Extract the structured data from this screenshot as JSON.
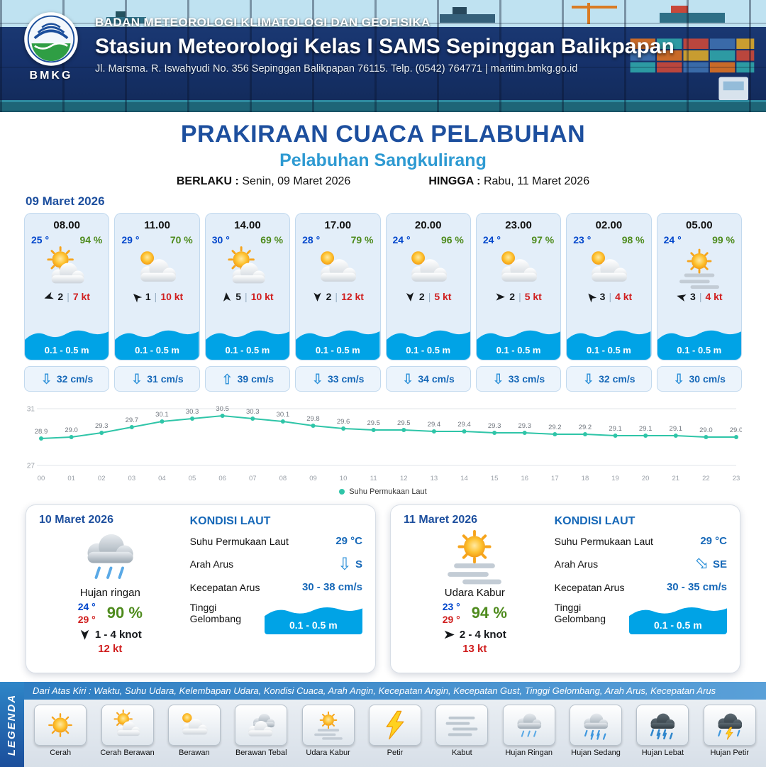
{
  "colors": {
    "header_navy": "#16316a",
    "title_blue": "#1d4f9e",
    "port_blue": "#2e9ad2",
    "temp_blue": "#0046cc",
    "humidity_green": "#4e8b1d",
    "gust_red": "#d01f1f",
    "wave_blue": "#00a3e6",
    "current_blue": "#1668b8",
    "chart_line_teal": "#2fc5a8"
  },
  "misc": {
    "separator": "|"
  },
  "header": {
    "logo_text": "BMKG",
    "org": "BADAN METEOROLOGI KLIMATOLOGI DAN GEOFISIKA",
    "station": "Stasiun Meteorologi Kelas I SAMS Sepinggan Balikpapan",
    "address": "Jl. Marsma. R. Iswahyudi No. 356 Sepinggan Balikpapan 76115. Telp. (0542) 764771 | maritim.bmkg.go.id"
  },
  "title": {
    "main": "PRAKIRAAN CUACA PELABUHAN",
    "port": "Pelabuhan Sangkulirang",
    "berlaku_label": "BERLAKU :",
    "berlaku_value": "Senin, 09 Maret 2026",
    "hingga_label": "HINGGA :",
    "hingga_value": "Rabu, 11 Maret 2026"
  },
  "forecast_date": "09 Maret 2026",
  "cards": [
    {
      "time": "08.00",
      "temp": "25 °",
      "humidity": "94 %",
      "icon": "cerah-berawan",
      "wind_deg": 250,
      "wind_speed": "2",
      "gust": "7 kt",
      "wave_height": "0.1 - 0.5 m",
      "current_deg": 0,
      "current_speed": "32 cm/s"
    },
    {
      "time": "11.00",
      "temp": "29 °",
      "humidity": "70 %",
      "icon": "berawan",
      "wind_deg": 315,
      "wind_speed": "1",
      "gust": "10 kt",
      "wave_height": "0.1 - 0.5 m",
      "current_deg": 0,
      "current_speed": "31 cm/s"
    },
    {
      "time": "14.00",
      "temp": "30 °",
      "humidity": "69 %",
      "icon": "cerah-berawan",
      "wind_deg": 355,
      "wind_speed": "5",
      "gust": "10 kt",
      "wave_height": "0.1 - 0.5 m",
      "current_deg": 180,
      "current_speed": "39 cm/s"
    },
    {
      "time": "17.00",
      "temp": "28 °",
      "humidity": "79 %",
      "icon": "berawan",
      "wind_deg": 180,
      "wind_speed": "2",
      "gust": "12 kt",
      "wave_height": "0.1 - 0.5 m",
      "current_deg": 0,
      "current_speed": "33 cm/s"
    },
    {
      "time": "20.00",
      "temp": "24 °",
      "humidity": "96 %",
      "icon": "berawan",
      "wind_deg": 175,
      "wind_speed": "2",
      "gust": "5 kt",
      "wave_height": "0.1 - 0.5 m",
      "current_deg": 0,
      "current_speed": "34 cm/s"
    },
    {
      "time": "23.00",
      "temp": "24 °",
      "humidity": "97 %",
      "icon": "berawan",
      "wind_deg": 90,
      "wind_speed": "2",
      "gust": "5 kt",
      "wave_height": "0.1 - 0.5 m",
      "current_deg": 0,
      "current_speed": "33 cm/s"
    },
    {
      "time": "02.00",
      "temp": "23 °",
      "humidity": "98 %",
      "icon": "berawan",
      "wind_deg": 320,
      "wind_speed": "3",
      "gust": "4 kt",
      "wave_height": "0.1 - 0.5 m",
      "current_deg": 0,
      "current_speed": "32 cm/s"
    },
    {
      "time": "05.00",
      "temp": "24 °",
      "humidity": "99 %",
      "icon": "udara-kabur",
      "wind_deg": 285,
      "wind_speed": "3",
      "gust": "4 kt",
      "wave_height": "0.1 - 0.5 m",
      "current_deg": 0,
      "current_speed": "30 cm/s"
    }
  ],
  "chart_data": {
    "type": "line",
    "x": [
      "00",
      "01",
      "02",
      "03",
      "04",
      "05",
      "06",
      "07",
      "08",
      "09",
      "10",
      "11",
      "12",
      "13",
      "14",
      "15",
      "16",
      "17",
      "18",
      "19",
      "20",
      "21",
      "22",
      "23"
    ],
    "series": [
      {
        "name": "Suhu Permukaan Laut",
        "values": [
          28.9,
          29.0,
          29.3,
          29.7,
          30.1,
          30.3,
          30.5,
          30.3,
          30.1,
          29.8,
          29.6,
          29.5,
          29.5,
          29.4,
          29.4,
          29.3,
          29.3,
          29.2,
          29.2,
          29.1,
          29.1,
          29.1,
          29.0,
          29.0
        ]
      }
    ],
    "ylim": [
      27,
      31
    ],
    "y_ticks": [
      27,
      31
    ],
    "legend_position": "bottom",
    "line_color": "#2fc5a8"
  },
  "days": [
    {
      "date": "10 Maret 2026",
      "icon": "hujan-ringan",
      "condition": "Hujan ringan",
      "temp_min": "24 °",
      "temp_max": "29 °",
      "humidity": "90 %",
      "wind_deg": 180,
      "wind_range": "1 - 4 knot",
      "gust": "12 kt",
      "sea": {
        "title": "KONDISI LAUT",
        "sst_label": "Suhu Permukaan Laut",
        "sst_value": "29 °C",
        "current_dir_label": "Arah Arus",
        "current_dir": "S",
        "current_dir_deg": 0,
        "current_speed_label": "Kecepatan Arus",
        "current_speed": "30 - 38 cm/s",
        "wave_label": "Tinggi Gelombang",
        "wave_value": "0.1 - 0.5 m"
      }
    },
    {
      "date": "11 Maret 2026",
      "icon": "udara-kabur",
      "condition": "Udara Kabur",
      "temp_min": "23 °",
      "temp_max": "29 °",
      "humidity": "94 %",
      "wind_deg": 90,
      "wind_range": "2 - 4 knot",
      "gust": "13 kt",
      "sea": {
        "title": "KONDISI LAUT",
        "sst_label": "Suhu Permukaan Laut",
        "sst_value": "29 °C",
        "current_dir_label": "Arah Arus",
        "current_dir": "SE",
        "current_dir_deg": 315,
        "current_speed_label": "Kecepatan Arus",
        "current_speed": "30 - 35 cm/s",
        "wave_label": "Tinggi Gelombang",
        "wave_value": "0.1 - 0.5 m"
      }
    }
  ],
  "legend": {
    "ribbon": "LEGENDA",
    "description": "Dari Atas Kiri : Waktu, Suhu Udara, Kelembapan Udara, Kondisi Cuaca, Arah Angin, Kecepatan Angin, Kecepatan Gust, Tinggi Gelombang, Arah Arus, Kecepatan Arus",
    "items": [
      {
        "icon": "cerah",
        "label": "Cerah"
      },
      {
        "icon": "cerah-berawan",
        "label": "Cerah Berawan"
      },
      {
        "icon": "berawan",
        "label": "Berawan"
      },
      {
        "icon": "berawan-tebal",
        "label": "Berawan Tebal"
      },
      {
        "icon": "udara-kabur",
        "label": "Udara Kabur"
      },
      {
        "icon": "petir",
        "label": "Petir"
      },
      {
        "icon": "kabut",
        "label": "Kabut"
      },
      {
        "icon": "hujan-ringan",
        "label": "Hujan Ringan"
      },
      {
        "icon": "hujan-sedang",
        "label": "Hujan Sedang"
      },
      {
        "icon": "hujan-lebat",
        "label": "Hujan Lebat"
      },
      {
        "icon": "hujan-petir",
        "label": "Hujan Petir"
      }
    ]
  }
}
